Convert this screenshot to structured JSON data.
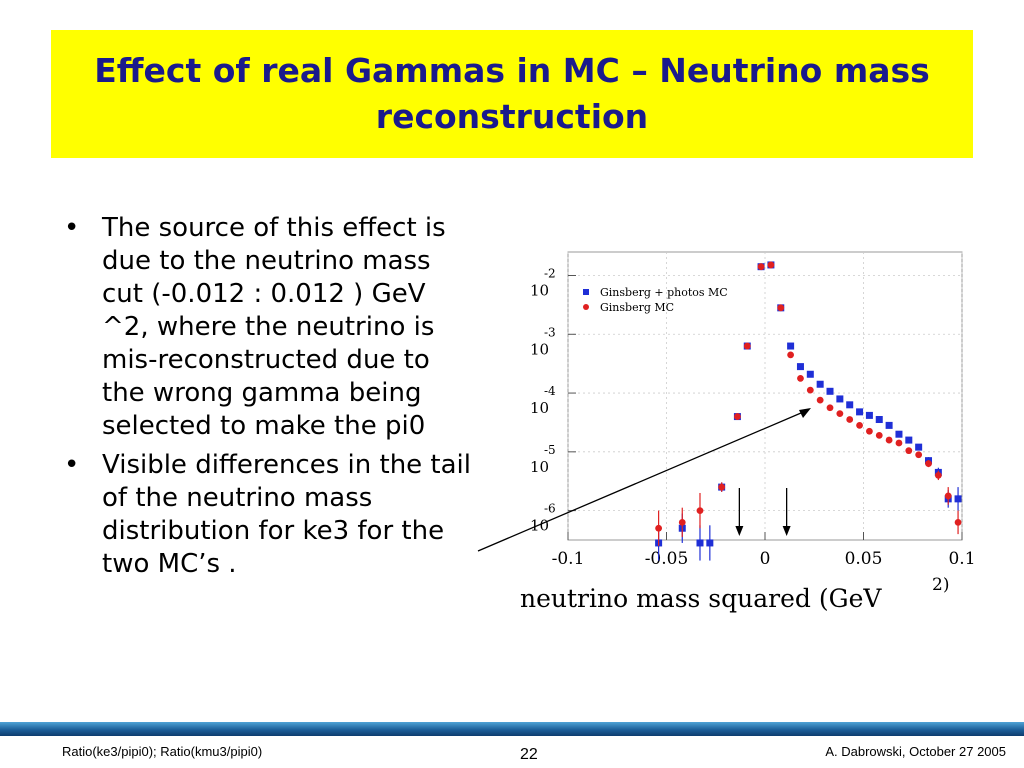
{
  "slide": {
    "title": "Effect of real Gammas in MC – Neutrino mass reconstruction",
    "bullets": [
      "The source of this effect is due to the neutrino mass cut (-0.012 : 0.012 ) GeV ^2, where the neutrino is mis-reconstructed due to the wrong gamma being selected to make the pi0",
      "Visible differences in the tail of the neutrino mass distribution for ke3 for the two MC’s ."
    ],
    "bullet_glyph": "•"
  },
  "footer": {
    "left": "Ratio(ke3/pipi0); Ratio(kmu3/pipi0)",
    "page": "22",
    "right": "A. Dabrowski, October 27 2005"
  },
  "colors": {
    "title_bg": "#ffff00",
    "title_text": "#1a1a8c",
    "series_blue": "#1f2fd6",
    "series_red": "#e02020"
  },
  "chart_data": {
    "type": "scatter",
    "xlabel": "neutrino mass squared  (GeV",
    "xlabel_sup": "2)",
    "xlim": [
      -0.1,
      0.1
    ],
    "ylim": [
      -6.5,
      -1.6
    ],
    "log_y": true,
    "x_ticks": [
      -0.1,
      -0.05,
      0,
      0.05,
      0.1
    ],
    "x_tick_labels": [
      "-0.1",
      "-0.05",
      "0",
      "0.05",
      "0.1"
    ],
    "y_ticks": [
      -2,
      -3,
      -4,
      -5,
      -6
    ],
    "y_tick_base": "10",
    "y_tick_exps": [
      "-2",
      "-3",
      "-4",
      "-5",
      "-6"
    ],
    "legend_position": "top-left",
    "cut_markers_x": [
      -0.012,
      0.012
    ],
    "series": [
      {
        "name": "Ginsberg + photos MC",
        "marker": "square",
        "points": [
          {
            "x": -0.054,
            "y": -6.6,
            "err": 0.3
          },
          {
            "x": -0.042,
            "y": -6.3,
            "err": 0.25
          },
          {
            "x": -0.033,
            "y": -6.6,
            "err": 0.3
          },
          {
            "x": -0.028,
            "y": -6.6,
            "err": 0.3
          },
          {
            "x": -0.022,
            "y": -5.6,
            "err": 0.08
          },
          {
            "x": -0.014,
            "y": -4.4,
            "err": 0.05
          },
          {
            "x": -0.009,
            "y": -3.2,
            "err": 0.04
          },
          {
            "x": -0.002,
            "y": -1.85,
            "err": 0.02
          },
          {
            "x": 0.003,
            "y": -1.82,
            "err": 0.02
          },
          {
            "x": 0.008,
            "y": -2.55,
            "err": 0.02
          },
          {
            "x": 0.013,
            "y": -3.2,
            "err": 0.03
          },
          {
            "x": 0.018,
            "y": -3.55,
            "err": 0.03
          },
          {
            "x": 0.023,
            "y": -3.68,
            "err": 0.03
          },
          {
            "x": 0.028,
            "y": -3.85,
            "err": 0.03
          },
          {
            "x": 0.033,
            "y": -3.97,
            "err": 0.03
          },
          {
            "x": 0.038,
            "y": -4.1,
            "err": 0.03
          },
          {
            "x": 0.043,
            "y": -4.2,
            "err": 0.03
          },
          {
            "x": 0.048,
            "y": -4.32,
            "err": 0.03
          },
          {
            "x": 0.053,
            "y": -4.38,
            "err": 0.03
          },
          {
            "x": 0.058,
            "y": -4.45,
            "err": 0.03
          },
          {
            "x": 0.063,
            "y": -4.55,
            "err": 0.04
          },
          {
            "x": 0.068,
            "y": -4.7,
            "err": 0.04
          },
          {
            "x": 0.073,
            "y": -4.8,
            "err": 0.05
          },
          {
            "x": 0.078,
            "y": -4.92,
            "err": 0.05
          },
          {
            "x": 0.083,
            "y": -5.15,
            "err": 0.06
          },
          {
            "x": 0.088,
            "y": -5.35,
            "err": 0.08
          },
          {
            "x": 0.093,
            "y": -5.8,
            "err": 0.15
          },
          {
            "x": 0.098,
            "y": -5.8,
            "err": 0.2
          }
        ]
      },
      {
        "name": "Ginsberg MC",
        "marker": "circle",
        "points": [
          {
            "x": -0.054,
            "y": -6.3,
            "err": 0.3
          },
          {
            "x": -0.042,
            "y": -6.2,
            "err": 0.25
          },
          {
            "x": -0.033,
            "y": -6.0,
            "err": 0.3
          },
          {
            "x": -0.022,
            "y": -5.6,
            "err": 0.08
          },
          {
            "x": -0.014,
            "y": -4.4,
            "err": 0.05
          },
          {
            "x": -0.009,
            "y": -3.2,
            "err": 0.04
          },
          {
            "x": -0.002,
            "y": -1.85,
            "err": 0.02
          },
          {
            "x": 0.003,
            "y": -1.82,
            "err": 0.02
          },
          {
            "x": 0.008,
            "y": -2.55,
            "err": 0.02
          },
          {
            "x": 0.013,
            "y": -3.35,
            "err": 0.03
          },
          {
            "x": 0.018,
            "y": -3.75,
            "err": 0.03
          },
          {
            "x": 0.023,
            "y": -3.95,
            "err": 0.03
          },
          {
            "x": 0.028,
            "y": -4.12,
            "err": 0.03
          },
          {
            "x": 0.033,
            "y": -4.25,
            "err": 0.03
          },
          {
            "x": 0.038,
            "y": -4.35,
            "err": 0.03
          },
          {
            "x": 0.043,
            "y": -4.45,
            "err": 0.03
          },
          {
            "x": 0.048,
            "y": -4.55,
            "err": 0.03
          },
          {
            "x": 0.053,
            "y": -4.65,
            "err": 0.03
          },
          {
            "x": 0.058,
            "y": -4.72,
            "err": 0.03
          },
          {
            "x": 0.063,
            "y": -4.8,
            "err": 0.04
          },
          {
            "x": 0.068,
            "y": -4.85,
            "err": 0.04
          },
          {
            "x": 0.073,
            "y": -4.98,
            "err": 0.05
          },
          {
            "x": 0.078,
            "y": -5.05,
            "err": 0.05
          },
          {
            "x": 0.083,
            "y": -5.2,
            "err": 0.06
          },
          {
            "x": 0.088,
            "y": -5.4,
            "err": 0.08
          },
          {
            "x": 0.093,
            "y": -5.75,
            "err": 0.15
          },
          {
            "x": 0.098,
            "y": -6.2,
            "err": 0.2
          }
        ]
      }
    ]
  }
}
